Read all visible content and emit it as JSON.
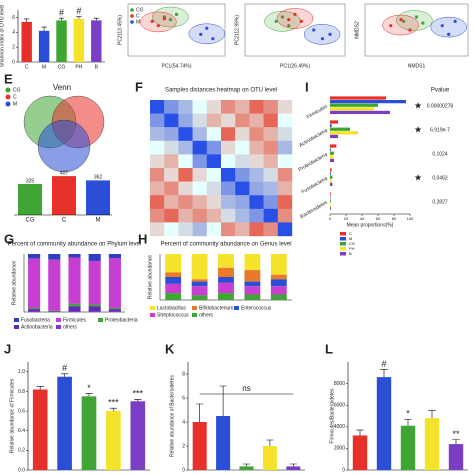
{
  "chart_data": [
    {
      "type": "bar",
      "ylabel": "Shannon index of OTU level",
      "categories": [
        "C",
        "M",
        "CG",
        "PH",
        "B"
      ],
      "values": [
        5.4,
        4.2,
        5.6,
        5.8,
        5.6
      ],
      "errors": [
        0.4,
        0.5,
        0.3,
        0.3,
        0.3
      ],
      "colors": [
        "#e8302a",
        "#2a4fd6",
        "#3fa535",
        "#f5e22a",
        "#7a3fc4"
      ],
      "annotations": [
        null,
        null,
        "#",
        "#",
        null
      ],
      "ylim": [
        0,
        7
      ],
      "yticks": [
        0,
        2,
        4,
        6
      ]
    },
    {
      "type": "scatter",
      "xlabel": "PC1(54.74%)",
      "ylabel": "PC2(13.45%)",
      "xlim": [
        -0.4,
        0.4
      ],
      "ylim": [
        -0.3,
        0.3
      ],
      "series": [
        {
          "name": "CG",
          "color": "#3fa535",
          "x": [
            -0.1,
            -0.05,
            0.0
          ],
          "values": [
            0.15,
            0.12,
            0.18
          ]
        },
        {
          "name": "C",
          "color": "#e8302a",
          "x": [
            -0.2,
            -0.15,
            -0.1
          ],
          "values": [
            0.1,
            0.05,
            0.13
          ]
        },
        {
          "name": "M",
          "color": "#2a4fd6",
          "x": [
            0.2,
            0.25,
            0.3
          ],
          "values": [
            -0.05,
            0.02,
            -0.1
          ]
        }
      ]
    },
    {
      "type": "scatter",
      "xlabel": "PC1(26.49%)",
      "ylabel": "PC2(12.99%)",
      "xlim": [
        -0.4,
        0.4
      ],
      "ylim": [
        -0.3,
        0.3
      ],
      "series": [
        {
          "name": "CG",
          "color": "#3fa535",
          "x": [
            -0.15,
            -0.1,
            -0.05
          ],
          "values": [
            0.1,
            0.15,
            0.05
          ]
        },
        {
          "name": "C",
          "color": "#e8302a",
          "x": [
            -0.05,
            0.0,
            0.05
          ],
          "values": [
            0.12,
            0.18,
            0.1
          ]
        },
        {
          "name": "M",
          "color": "#2a4fd6",
          "x": [
            0.15,
            0.22,
            0.28
          ],
          "values": [
            0.0,
            -0.1,
            -0.05
          ]
        }
      ]
    },
    {
      "type": "scatter",
      "xlabel": "NMDS1",
      "ylabel": "NMDS2",
      "xlim": [
        -0.4,
        0.4
      ],
      "ylim": [
        -0.3,
        0.3
      ],
      "series": [
        {
          "name": "CG",
          "color": "#3fa535",
          "x": [
            -0.1,
            0.0,
            0.05
          ],
          "values": [
            0.1,
            0.15,
            0.08
          ]
        },
        {
          "name": "C",
          "color": "#e8302a",
          "x": [
            -0.2,
            -0.12,
            -0.05
          ],
          "values": [
            0.05,
            0.12,
            0.0
          ]
        },
        {
          "name": "M",
          "color": "#2a4fd6",
          "x": [
            0.2,
            0.25,
            0.3
          ],
          "values": [
            0.05,
            -0.05,
            0.1
          ]
        }
      ]
    },
    {
      "type": "venn",
      "panel": "E",
      "title": "Venn",
      "categories": [
        "CG",
        "C",
        "M"
      ],
      "colors": [
        "#3fa535",
        "#e8302a",
        "#2a4fd6"
      ],
      "values": [
        325,
        407,
        362
      ],
      "ylim": [
        0,
        450
      ]
    },
    {
      "type": "heatmap",
      "panel": "F",
      "title": "Samples distances heatmap on OTU level",
      "zlim": [
        0,
        1
      ],
      "matrix": [
        [
          0,
          0.2,
          0.3,
          0.5,
          0.6,
          0.8,
          0.7,
          0.9,
          0.8,
          0.6
        ],
        [
          0.2,
          0,
          0.25,
          0.4,
          0.7,
          0.6,
          0.8,
          0.7,
          0.9,
          0.5
        ],
        [
          0.3,
          0.25,
          0,
          0.3,
          0.5,
          0.9,
          0.6,
          0.8,
          0.7,
          0.4
        ],
        [
          0.5,
          0.4,
          0.3,
          0,
          0.2,
          0.6,
          0.5,
          0.7,
          0.8,
          0.3
        ],
        [
          0.6,
          0.7,
          0.5,
          0.2,
          0,
          0.5,
          0.4,
          0.6,
          0.7,
          0.5
        ],
        [
          0.8,
          0.6,
          0.9,
          0.6,
          0.5,
          0,
          0.2,
          0.3,
          0.4,
          0.8
        ],
        [
          0.7,
          0.8,
          0.6,
          0.5,
          0.4,
          0.2,
          0,
          0.25,
          0.3,
          0.7
        ],
        [
          0.9,
          0.7,
          0.8,
          0.7,
          0.6,
          0.3,
          0.25,
          0,
          0.2,
          0.9
        ],
        [
          0.8,
          0.9,
          0.7,
          0.8,
          0.7,
          0.4,
          0.3,
          0.2,
          0,
          0.8
        ],
        [
          0.6,
          0.5,
          0.4,
          0.3,
          0.5,
          0.8,
          0.7,
          0.9,
          0.8,
          0
        ]
      ]
    },
    {
      "type": "hbar",
      "panel": "I",
      "xlabel": "Mean proportions(%)",
      "pvalue_header": "Pvalue",
      "categories": [
        "Firmicutes",
        "Actinobacteria",
        "Proteobacteria",
        "Fusobacteria",
        "Bacteroidetes"
      ],
      "pvalues": [
        "0.00000278",
        "6.919e-7",
        "0.1024",
        "0.0462",
        "0.2827"
      ],
      "annotations": [
        "★",
        "★",
        null,
        "★",
        null
      ],
      "xlim": [
        0,
        100
      ],
      "xticks": [
        0,
        20,
        40,
        60,
        80,
        100
      ],
      "series": [
        {
          "name": "C",
          "color": "#e8302a",
          "values": [
            70,
            10,
            8,
            2,
            1
          ]
        },
        {
          "name": "M",
          "color": "#2a4fd6",
          "values": [
            95,
            2,
            1,
            1,
            0.5
          ]
        },
        {
          "name": "CG",
          "color": "#3fa535",
          "values": [
            60,
            25,
            5,
            3,
            1
          ]
        },
        {
          "name": "PH",
          "color": "#f5e22a",
          "values": [
            55,
            35,
            4,
            2,
            1
          ]
        },
        {
          "name": "B",
          "color": "#7a3fc4",
          "values": [
            75,
            10,
            5,
            3,
            1
          ]
        }
      ]
    },
    {
      "type": "stacked",
      "panel": "G",
      "title": "Percent of community abundance on Phylum level",
      "ylabel": "Relative abundance",
      "ylim": [
        0,
        100
      ],
      "series": [
        {
          "name": "Fusobacteria",
          "color": "#2f3fbf",
          "values": [
            8,
            10,
            6,
            12,
            7
          ]
        },
        {
          "name": "Firmicutes",
          "color": "#c63fd1",
          "values": [
            85,
            88,
            80,
            75,
            86
          ]
        },
        {
          "name": "Proteobacteria",
          "color": "#3fa535",
          "values": [
            2,
            1,
            4,
            3,
            2
          ]
        },
        {
          "name": "Actinobacteria",
          "color": "#5a2fb0",
          "values": [
            4,
            1,
            9,
            9,
            4
          ]
        },
        {
          "name": "others",
          "color": "#8a2fd6",
          "values": [
            1,
            0,
            1,
            1,
            1
          ]
        }
      ]
    },
    {
      "type": "stacked",
      "panel": "H",
      "title": "Percent of community abundance on Genus level",
      "ylabel": "Relative abundance",
      "ylim": [
        0,
        100
      ],
      "series": [
        {
          "name": "Lactobacillus",
          "color": "#f5e22a",
          "values": [
            40,
            55,
            30,
            35,
            45
          ]
        },
        {
          "name": "Bifidobacterium",
          "color": "#e87a2a",
          "values": [
            10,
            5,
            20,
            25,
            10
          ]
        },
        {
          "name": "Enterococcus",
          "color": "#2a4fd6",
          "values": [
            15,
            10,
            12,
            10,
            15
          ]
        },
        {
          "name": "Streptococcus",
          "color": "#c63fd1",
          "values": [
            20,
            20,
            23,
            18,
            18
          ]
        },
        {
          "name": "others",
          "color": "#3fa535",
          "values": [
            15,
            10,
            15,
            12,
            12
          ]
        }
      ]
    },
    {
      "type": "bar",
      "panel": "J",
      "ylabel": "Relative abundance of Firmicutes",
      "values": [
        0.82,
        0.95,
        0.75,
        0.6,
        0.7
      ],
      "errors": [
        0.03,
        0.03,
        0.03,
        0.03,
        0.02
      ],
      "colors": [
        "#e8302a",
        "#2a4fd6",
        "#3fa535",
        "#f5e22a",
        "#7a3fc4"
      ],
      "annotations": [
        null,
        "#",
        "*",
        "***",
        "***"
      ],
      "ylim": [
        0,
        1.1
      ],
      "yticks": [
        {
          "value": 0,
          "label": "0.0"
        },
        {
          "value": 0.2,
          "label": "0.2"
        },
        {
          "value": 0.4,
          "label": "0.4"
        },
        {
          "value": 0.6,
          "label": "0.6"
        },
        {
          "value": 0.8,
          "label": "0.8"
        },
        {
          "value": 1,
          "label": "1.0"
        }
      ]
    },
    {
      "type": "bar",
      "panel": "K",
      "ylabel": "Relative abundance of Bacteroidetes",
      "values": [
        4,
        4.5,
        0.3,
        2,
        0.3
      ],
      "errors": [
        1.5,
        2.5,
        0.2,
        0.5,
        0.2
      ],
      "colors": [
        "#e8302a",
        "#2a4fd6",
        "#3fa535",
        "#f5e22a",
        "#7a3fc4"
      ],
      "annotations": [
        "ns",
        null,
        null,
        null,
        null
      ],
      "ylim": [
        0,
        9
      ],
      "yticks": [
        0,
        2,
        4,
        6,
        8
      ]
    },
    {
      "type": "bar",
      "panel": "L",
      "ylabel": "Firmicutes/Bacteroidetes",
      "values": [
        3200,
        8600,
        4100,
        4800,
        2400
      ],
      "errors": [
        500,
        700,
        600,
        700,
        400
      ],
      "colors": [
        "#e8302a",
        "#2a4fd6",
        "#3fa535",
        "#f5e22a",
        "#7a3fc4"
      ],
      "annotations": [
        null,
        "#",
        "*",
        null,
        "**"
      ],
      "ylim": [
        0,
        10000
      ],
      "yticks": [
        0,
        2000,
        4000,
        6000,
        8000
      ]
    }
  ]
}
